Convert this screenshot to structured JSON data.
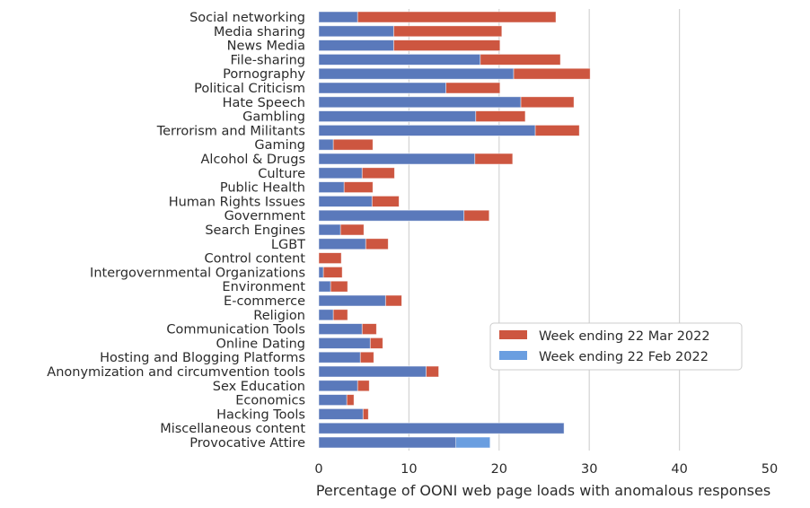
{
  "chart_data": {
    "type": "bar",
    "orientation": "horizontal",
    "overlay": true,
    "title": "",
    "xlabel": "Percentage of OONI web page loads with anomalous responses",
    "ylabel": "",
    "xlim": [
      0,
      50
    ],
    "xticks": [
      0,
      10,
      20,
      30,
      40,
      50
    ],
    "xtick_labels": [
      "0",
      "10",
      "20",
      "30",
      "40",
      "50"
    ],
    "grid": "vertical",
    "legend_position": "center-right",
    "categories": [
      "Social networking",
      "Media sharing",
      "News Media",
      "File-sharing",
      "Pornography",
      "Political Criticism",
      "Hate Speech",
      "Gambling",
      "Terrorism and Militants",
      "Gaming",
      "Alcohol & Drugs",
      "Culture",
      "Public Health",
      "Human Rights Issues",
      "Government",
      "Search Engines",
      "LGBT",
      "Control content",
      "Intergovernmental Organizations",
      "Environment",
      "E-commerce",
      "Religion",
      "Communication Tools",
      "Online Dating",
      "Hosting and Blogging Platforms",
      "Anonymization and circumvention tools",
      "Sex Education",
      "Economics",
      "Hacking Tools",
      "Miscellaneous content",
      "Provocative Attire"
    ],
    "series": [
      {
        "name": "Week ending 22 Mar 2022",
        "color": "#cd5640",
        "values": [
          26.3,
          20.3,
          20.1,
          26.8,
          30.1,
          20.1,
          28.3,
          22.9,
          28.9,
          6.0,
          21.5,
          8.4,
          6.0,
          8.9,
          18.9,
          5.0,
          7.7,
          2.5,
          2.6,
          3.2,
          9.2,
          3.2,
          6.4,
          7.1,
          6.1,
          13.3,
          5.6,
          3.9,
          5.5,
          27.2,
          15.2
        ]
      },
      {
        "name": "Week ending 22 Feb 2022",
        "color": "#6a9ee0",
        "values": [
          4.3,
          8.3,
          8.3,
          17.9,
          21.6,
          14.1,
          22.4,
          17.4,
          24.0,
          1.6,
          17.3,
          4.8,
          2.8,
          5.9,
          16.1,
          2.4,
          5.2,
          0.0,
          0.5,
          1.3,
          7.4,
          1.6,
          4.8,
          5.7,
          4.6,
          11.9,
          4.3,
          3.1,
          4.9,
          27.2,
          19.0
        ]
      }
    ],
    "overlap_color": "#5a79bb",
    "grid_color": "#d3d3d3"
  }
}
